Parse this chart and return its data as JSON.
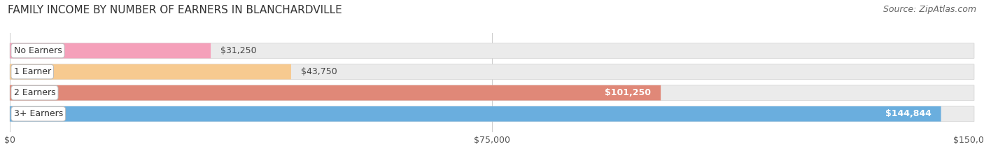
{
  "title": "FAMILY INCOME BY NUMBER OF EARNERS IN BLANCHARDVILLE",
  "source": "Source: ZipAtlas.com",
  "categories": [
    "No Earners",
    "1 Earner",
    "2 Earners",
    "3+ Earners"
  ],
  "values": [
    31250,
    43750,
    101250,
    144844
  ],
  "bar_colors": [
    "#f5a0ba",
    "#f7ca90",
    "#e08878",
    "#6aaede"
  ],
  "bar_bg_color": "#ebebeb",
  "xlim": [
    0,
    150000
  ],
  "xticks": [
    0,
    75000,
    150000
  ],
  "xtick_labels": [
    "$0",
    "$75,000",
    "$150,000"
  ],
  "value_labels": [
    "$31,250",
    "$43,750",
    "$101,250",
    "$144,844"
  ],
  "value_threshold": 0.45,
  "title_fontsize": 11,
  "source_fontsize": 9,
  "tick_fontsize": 9,
  "label_fontsize": 9,
  "category_fontsize": 9,
  "background_color": "#ffffff",
  "bar_height": 0.72,
  "bar_gap": 0.28
}
